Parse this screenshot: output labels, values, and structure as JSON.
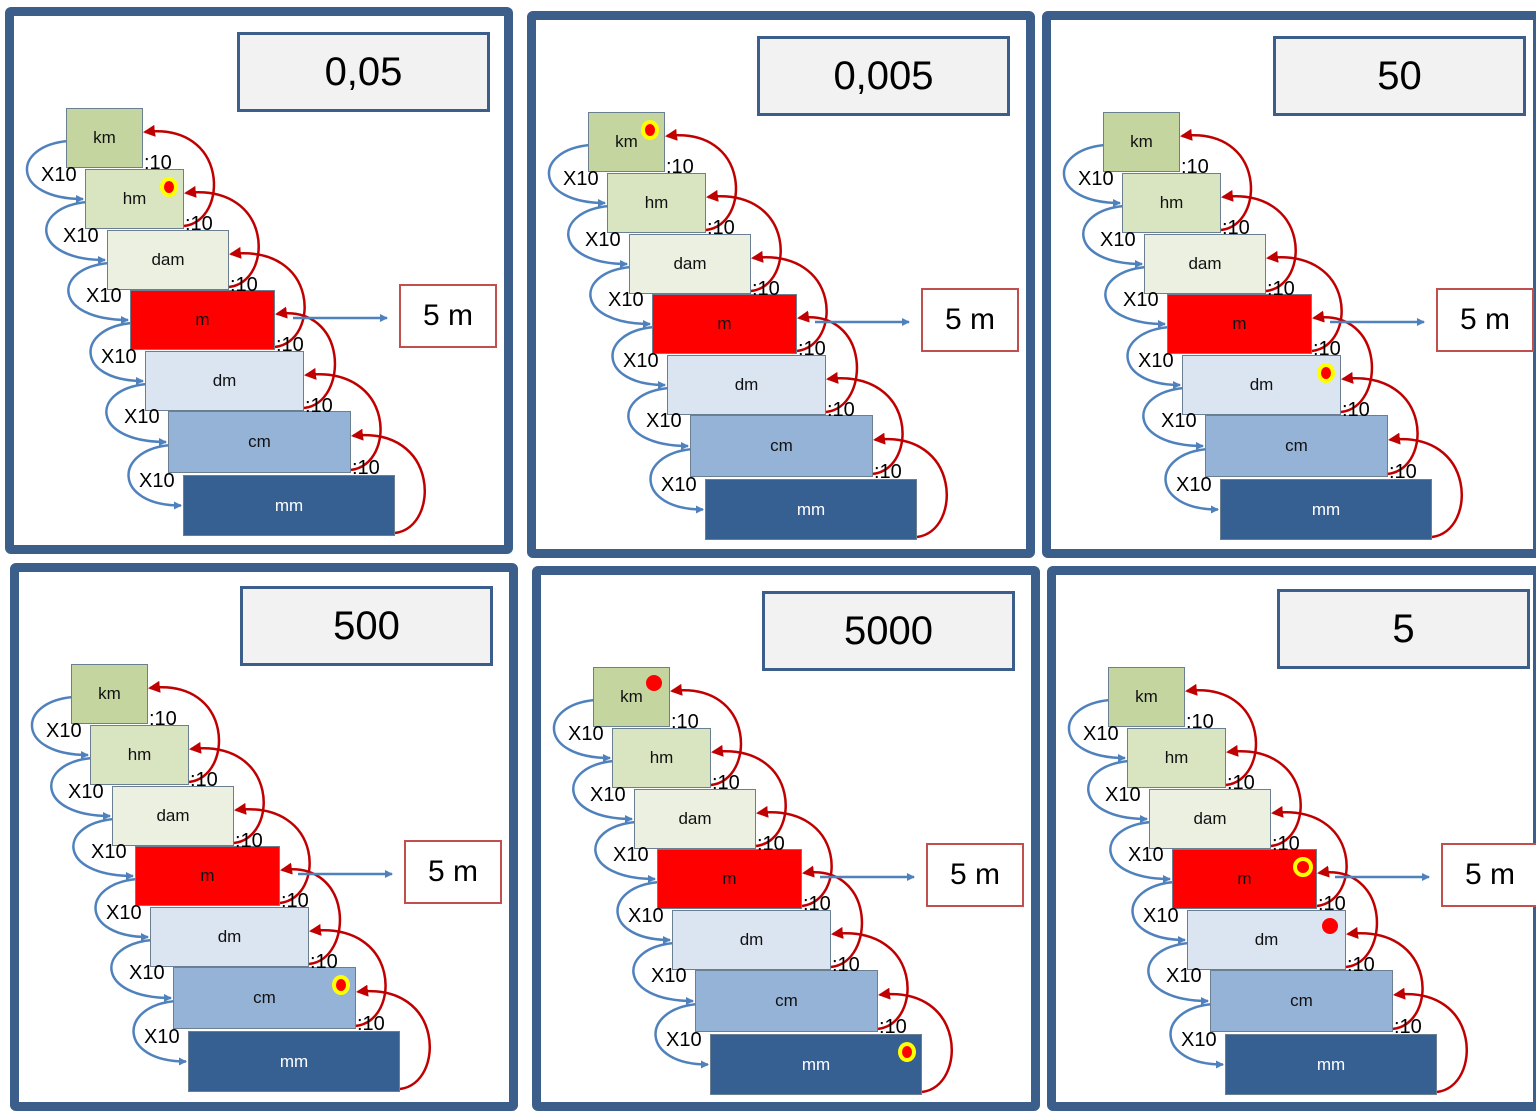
{
  "legend_colors": {
    "frame": "#3b5f8a",
    "arrow_multiply": "#4f81bd",
    "arrow_divide": "#c00000",
    "marker": "#ff0000",
    "marker_ring": "#ffff00"
  },
  "multiply_label": "X10",
  "divide_label": ":10",
  "given": "5 m",
  "units": [
    "km",
    "hm",
    "dam",
    "m",
    "dm",
    "cm",
    "mm"
  ],
  "cards": [
    {
      "answer": "0,05",
      "markers": [
        {
          "unit": "hm",
          "style": "ring-dot"
        }
      ]
    },
    {
      "answer": "0,005",
      "markers": [
        {
          "unit": "km",
          "style": "ring-dot"
        }
      ]
    },
    {
      "answer": "50",
      "markers": [
        {
          "unit": "dm",
          "style": "ring-dot"
        }
      ]
    },
    {
      "answer": "500",
      "markers": [
        {
          "unit": "cm",
          "style": "ring-dot"
        }
      ]
    },
    {
      "answer": "5000",
      "markers": [
        {
          "unit": "km",
          "style": "dot"
        },
        {
          "unit": "mm",
          "style": "ring-dot"
        }
      ]
    },
    {
      "answer": "5",
      "markers": [
        {
          "unit": "m",
          "style": "ring"
        },
        {
          "unit": "dm",
          "style": "dot"
        }
      ]
    }
  ]
}
